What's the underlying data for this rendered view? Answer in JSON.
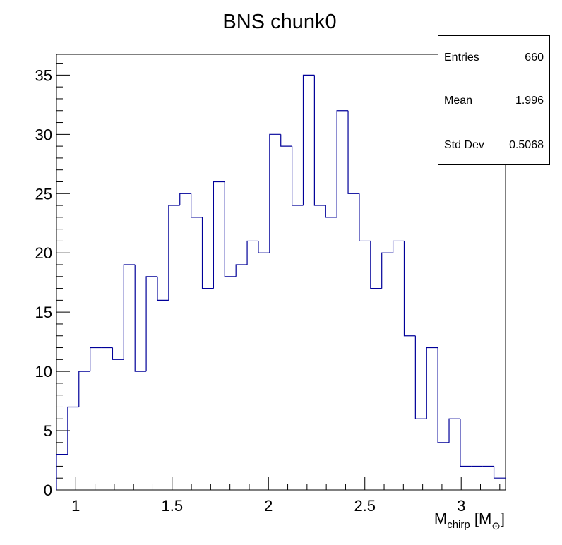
{
  "chart_data": {
    "type": "histogram",
    "title": "BNS chunk0",
    "xlabel": {
      "base": "M",
      "sub": "chirp",
      "unit_open": " [M",
      "unit_sub": "⊙",
      "unit_close": "]"
    },
    "ylabel": "",
    "xlim": [
      0.9,
      3.23
    ],
    "ylim": [
      0,
      36.75
    ],
    "bin_start": 0.9,
    "bin_width": 0.0582,
    "counts": [
      3,
      7,
      10,
      12,
      12,
      11,
      19,
      10,
      18,
      16,
      24,
      25,
      23,
      17,
      26,
      18,
      19,
      21,
      20,
      30,
      29,
      24,
      35,
      24,
      23,
      32,
      25,
      21,
      17,
      20,
      21,
      13,
      6,
      12,
      4,
      6,
      2,
      2,
      2,
      1
    ],
    "x_ticks": [
      {
        "value": 1,
        "label": "1"
      },
      {
        "value": 1.5,
        "label": "1.5"
      },
      {
        "value": 2,
        "label": "2"
      },
      {
        "value": 2.5,
        "label": "2.5"
      },
      {
        "value": 3,
        "label": "3"
      }
    ],
    "y_ticks": [
      {
        "value": 0,
        "label": "0"
      },
      {
        "value": 5,
        "label": "5"
      },
      {
        "value": 10,
        "label": "10"
      },
      {
        "value": 15,
        "label": "15"
      },
      {
        "value": 20,
        "label": "20"
      },
      {
        "value": 25,
        "label": "25"
      },
      {
        "value": 30,
        "label": "30"
      },
      {
        "value": 35,
        "label": "35"
      }
    ],
    "line_color": "#000099",
    "grid": false,
    "legend": "none"
  },
  "stats": {
    "entries_label": "Entries",
    "entries_value": "660",
    "mean_label": "Mean",
    "mean_value": "1.996",
    "stddev_label": "Std Dev",
    "stddev_value": "0.5068"
  }
}
